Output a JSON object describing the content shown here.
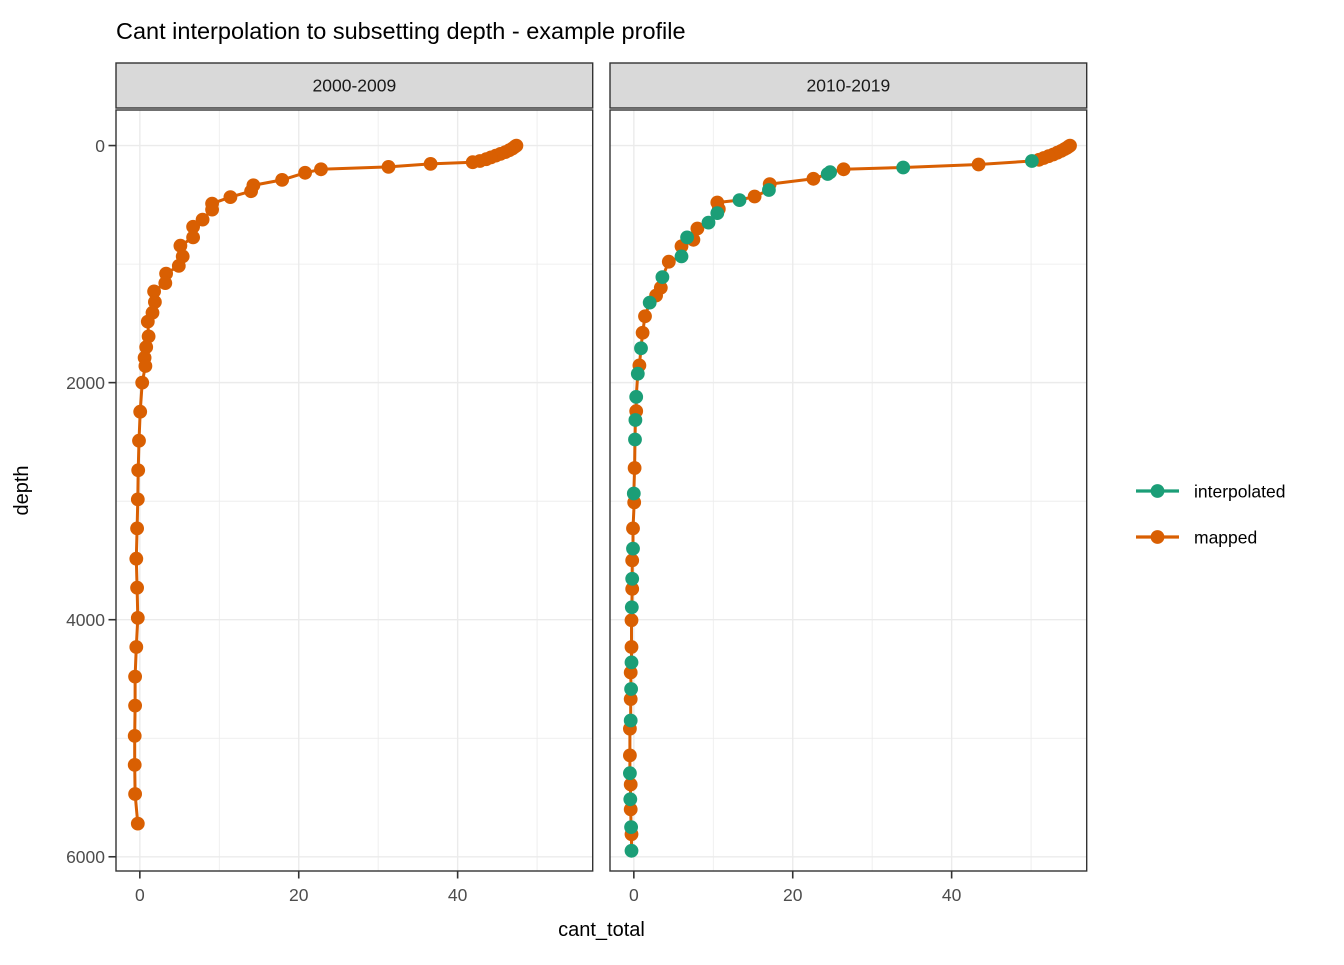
{
  "chart_data": {
    "type": "line",
    "title": "Cant interpolation to subsetting depth - example profile",
    "xlabel": "cant_total",
    "ylabel": "depth",
    "xlim": [
      -3,
      57
    ],
    "ylim": [
      -300,
      6120
    ],
    "y_reversed": true,
    "grid": true,
    "x_ticks": [
      0,
      20,
      40
    ],
    "x_minor_ticks": [
      10,
      30,
      50
    ],
    "y_ticks": [
      0,
      2000,
      4000,
      6000
    ],
    "y_minor_ticks": [
      1000,
      3000,
      5000
    ],
    "legend": {
      "position": "right",
      "entries": [
        {
          "label": "interpolated",
          "color": "#1B9E77"
        },
        {
          "label": "mapped",
          "color": "#D95F02"
        }
      ]
    },
    "style": {
      "strip_bg": "#D9D9D9",
      "panel_bg": "#FFFFFF",
      "grid_color": "#EBEBEB",
      "border_color": "#333333",
      "tick_color": "#333333",
      "tick_label_color": "#4D4D4D"
    },
    "facets": [
      {
        "label": "2000-2009",
        "series": [
          {
            "name": "mapped",
            "color": "#D95F02",
            "points": [
              [
                47.4,
                0
              ],
              [
                47.2,
                10
              ],
              [
                46.9,
                25
              ],
              [
                46.5,
                40
              ],
              [
                46.0,
                55
              ],
              [
                45.4,
                70
              ],
              [
                44.8,
                85
              ],
              [
                44.2,
                100
              ],
              [
                43.6,
                115
              ],
              [
                42.8,
                130
              ],
              [
                41.9,
                140
              ],
              [
                36.6,
                155
              ],
              [
                31.3,
                180
              ],
              [
                22.8,
                200
              ],
              [
                20.8,
                230
              ],
              [
                17.9,
                290
              ],
              [
                14.3,
                335
              ],
              [
                14.0,
                385
              ],
              [
                11.4,
                435
              ],
              [
                9.1,
                490
              ],
              [
                9.1,
                540
              ],
              [
                7.9,
                625
              ],
              [
                6.7,
                685
              ],
              [
                6.7,
                775
              ],
              [
                5.1,
                845
              ],
              [
                5.4,
                935
              ],
              [
                4.9,
                1015
              ],
              [
                3.3,
                1080
              ],
              [
                3.2,
                1160
              ],
              [
                1.8,
                1230
              ],
              [
                1.9,
                1320
              ],
              [
                1.6,
                1410
              ],
              [
                1.0,
                1485
              ],
              [
                1.1,
                1610
              ],
              [
                0.8,
                1700
              ],
              [
                0.6,
                1790
              ],
              [
                0.7,
                1860
              ],
              [
                0.3,
                2000
              ],
              [
                0.05,
                2245
              ],
              [
                -0.1,
                2490
              ],
              [
                -0.2,
                2740
              ],
              [
                -0.25,
                2985
              ],
              [
                -0.35,
                3230
              ],
              [
                -0.45,
                3485
              ],
              [
                -0.35,
                3730
              ],
              [
                -0.25,
                3985
              ],
              [
                -0.45,
                4230
              ],
              [
                -0.6,
                4480
              ],
              [
                -0.6,
                4725
              ],
              [
                -0.65,
                4980
              ],
              [
                -0.65,
                5225
              ],
              [
                -0.6,
                5470
              ],
              [
                -0.25,
                5720
              ]
            ]
          }
        ]
      },
      {
        "label": "2010-2019",
        "series": [
          {
            "name": "mapped",
            "color": "#D95F02",
            "points": [
              [
                54.9,
                0
              ],
              [
                54.7,
                10
              ],
              [
                54.5,
                20
              ],
              [
                54.2,
                30
              ],
              [
                53.8,
                45
              ],
              [
                53.3,
                60
              ],
              [
                52.8,
                75
              ],
              [
                52.2,
                90
              ],
              [
                51.6,
                105
              ],
              [
                51.0,
                120
              ],
              [
                43.4,
                160
              ],
              [
                26.4,
                200
              ],
              [
                22.6,
                280
              ],
              [
                17.1,
                325
              ],
              [
                15.2,
                430
              ],
              [
                10.5,
                480
              ],
              [
                10.7,
                535
              ],
              [
                8.0,
                700
              ],
              [
                7.5,
                795
              ],
              [
                6.0,
                850
              ],
              [
                4.4,
                980
              ],
              [
                3.4,
                1200
              ],
              [
                2.8,
                1265
              ],
              [
                1.4,
                1440
              ],
              [
                1.1,
                1580
              ],
              [
                0.7,
                1855
              ],
              [
                0.3,
                2240
              ],
              [
                0.1,
                2720
              ],
              [
                0.05,
                3010
              ],
              [
                -0.1,
                3230
              ],
              [
                -0.2,
                3500
              ],
              [
                -0.2,
                3740
              ],
              [
                -0.3,
                4005
              ],
              [
                -0.3,
                4230
              ],
              [
                -0.4,
                4445
              ],
              [
                -0.4,
                4670
              ],
              [
                -0.5,
                4920
              ],
              [
                -0.5,
                5145
              ],
              [
                -0.4,
                5390
              ],
              [
                -0.4,
                5600
              ],
              [
                -0.3,
                5810
              ]
            ]
          },
          {
            "name": "interpolated",
            "color": "#1B9E77",
            "points": [
              [
                50.1,
                130
              ],
              [
                33.9,
                185
              ],
              [
                24.7,
                225
              ],
              [
                24.4,
                240
              ],
              [
                17.0,
                375
              ],
              [
                13.3,
                460
              ],
              [
                10.5,
                570
              ],
              [
                9.4,
                650
              ],
              [
                6.7,
                775
              ],
              [
                6.0,
                935
              ],
              [
                3.6,
                1110
              ],
              [
                2.0,
                1325
              ],
              [
                0.9,
                1710
              ],
              [
                0.5,
                1925
              ],
              [
                0.3,
                2120
              ],
              [
                0.2,
                2315
              ],
              [
                0.15,
                2480
              ],
              [
                0.0,
                2935
              ],
              [
                -0.1,
                3400
              ],
              [
                -0.2,
                3655
              ],
              [
                -0.25,
                3895
              ],
              [
                -0.3,
                4360
              ],
              [
                -0.35,
                4585
              ],
              [
                -0.4,
                4850
              ],
              [
                -0.5,
                5295
              ],
              [
                -0.45,
                5515
              ],
              [
                -0.35,
                5750
              ],
              [
                -0.3,
                5950
              ]
            ]
          }
        ]
      }
    ]
  }
}
